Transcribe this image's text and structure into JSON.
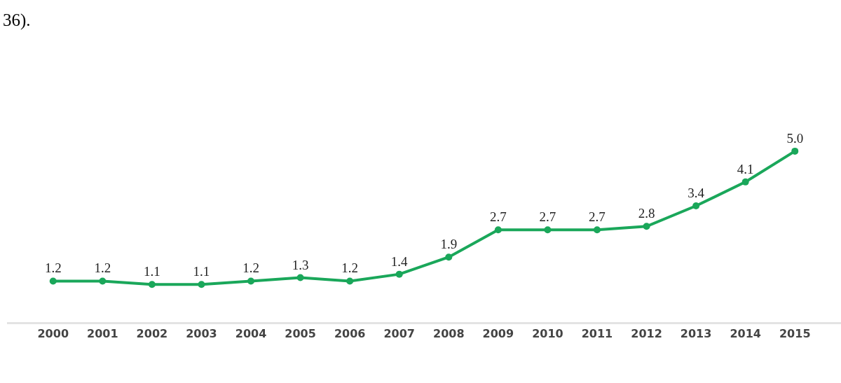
{
  "chart_data": {
    "type": "line",
    "annotations": [
      "36)."
    ],
    "categories": [
      "2000",
      "2001",
      "2002",
      "2003",
      "2004",
      "2005",
      "2006",
      "2007",
      "2008",
      "2009",
      "2010",
      "2011",
      "2012",
      "2013",
      "2014",
      "2015"
    ],
    "series": [
      {
        "color": "#1aa75a",
        "values": [
          1.2,
          1.2,
          1.1,
          1.1,
          1.2,
          1.3,
          1.2,
          1.4,
          1.9,
          2.7,
          2.7,
          2.7,
          2.8,
          3.4,
          4.1,
          5.0
        ],
        "value_labels": [
          "1.2",
          "1.2",
          "1.1",
          "1.1",
          "1.2",
          "1.3",
          "1.2",
          "1.4",
          "1.9",
          "2.7",
          "2.7",
          "2.7",
          "2.8",
          "3.4",
          "4.1",
          "5.0"
        ]
      }
    ],
    "marker": "circle",
    "line_style": "solid"
  }
}
